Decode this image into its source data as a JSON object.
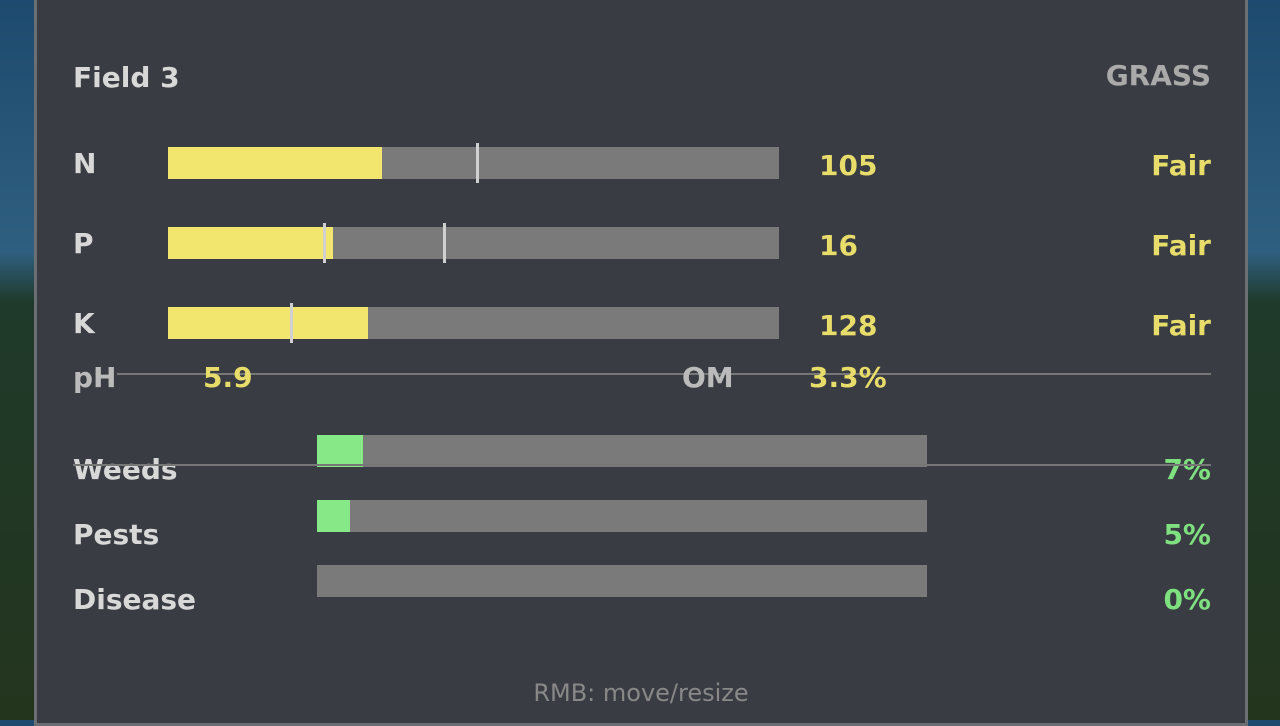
{
  "field": "Field 3",
  "crop": "GRASS",
  "nutrients": [
    {
      "label": "N",
      "value": "105",
      "status": "Fair",
      "fill_pct": 35,
      "markers_pct": [
        50.4
      ]
    },
    {
      "label": "P",
      "value": "16",
      "status": "Fair",
      "fill_pct": 27,
      "markers_pct": [
        25.4,
        45
      ]
    },
    {
      "label": "K",
      "value": "128",
      "status": "Fair",
      "fill_pct": 32.7,
      "markers_pct": [
        20
      ]
    }
  ],
  "ph": {
    "label": "pH",
    "value": "5.9"
  },
  "om": {
    "label": "OM",
    "value": "3.3%"
  },
  "threats": [
    {
      "label": "Weeds",
      "value": "7%",
      "fill_pct": 7.5
    },
    {
      "label": "Pests",
      "value": "5%",
      "fill_pct": 5.4
    },
    {
      "label": "Disease",
      "value": "0%",
      "fill_pct": 0
    }
  ],
  "hint": "RMB: move/resize",
  "colors": {
    "nutrient_fill": "#f2e66e",
    "threat_fill": "#86e886",
    "track": "#7a7a7a"
  }
}
